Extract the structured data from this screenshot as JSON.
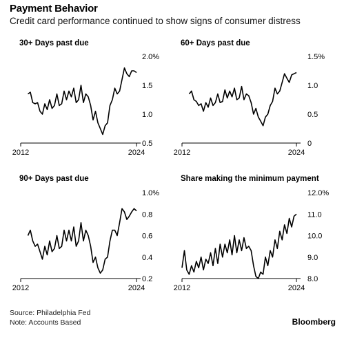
{
  "header": {
    "title": "Payment Behavior",
    "subtitle": "Credit card performance continued to show signs of consumer distress"
  },
  "footer": {
    "source": "Source: Philadelphia Fed",
    "note": "Note: Accounts Based",
    "brand": "Bloomberg"
  },
  "chart_data": [
    {
      "type": "line",
      "title": "30+ Days past due",
      "xlabel": "",
      "ylabel": "",
      "xlim": [
        2012,
        2024
      ],
      "ylim": [
        0.5,
        2.0
      ],
      "x_ticks": [
        "2012",
        "2024"
      ],
      "y_ticks": [
        0.5,
        1.0,
        1.5,
        2.0
      ],
      "y_tick_labels": [
        "0.5",
        "1.0",
        "1.5",
        "2.0%"
      ],
      "x": [
        2012.75,
        2013.0,
        2013.25,
        2013.5,
        2013.75,
        2014.0,
        2014.25,
        2014.5,
        2014.75,
        2015.0,
        2015.25,
        2015.5,
        2015.75,
        2016.0,
        2016.25,
        2016.5,
        2016.75,
        2017.0,
        2017.25,
        2017.5,
        2017.75,
        2018.0,
        2018.25,
        2018.5,
        2018.75,
        2019.0,
        2019.25,
        2019.5,
        2019.75,
        2020.0,
        2020.25,
        2020.5,
        2020.75,
        2021.0,
        2021.25,
        2021.5,
        2021.75,
        2022.0,
        2022.25,
        2022.5,
        2022.75,
        2023.0,
        2023.25,
        2023.5,
        2023.75,
        2024.0
      ],
      "values": [
        1.35,
        1.38,
        1.2,
        1.18,
        1.2,
        1.05,
        1.0,
        1.18,
        1.08,
        1.25,
        1.1,
        1.15,
        1.35,
        1.15,
        1.18,
        1.4,
        1.25,
        1.4,
        1.3,
        1.45,
        1.2,
        1.25,
        1.5,
        1.2,
        1.35,
        1.3,
        1.15,
        0.9,
        1.05,
        0.85,
        0.75,
        0.65,
        0.8,
        0.85,
        1.15,
        1.25,
        1.45,
        1.35,
        1.4,
        1.6,
        1.8,
        1.7,
        1.65,
        1.75,
        1.75,
        1.72
      ]
    },
    {
      "type": "line",
      "title": "60+ Days past due",
      "xlabel": "",
      "ylabel": "",
      "xlim": [
        2012,
        2024
      ],
      "ylim": [
        0,
        1.5
      ],
      "x_ticks": [
        "2012",
        "2024"
      ],
      "y_ticks": [
        0,
        0.5,
        1.0,
        1.5
      ],
      "y_tick_labels": [
        "0",
        "0.5",
        "1.0",
        "1.5%"
      ],
      "x": [
        2012.75,
        2013.0,
        2013.25,
        2013.5,
        2013.75,
        2014.0,
        2014.25,
        2014.5,
        2014.75,
        2015.0,
        2015.25,
        2015.5,
        2015.75,
        2016.0,
        2016.25,
        2016.5,
        2016.75,
        2017.0,
        2017.25,
        2017.5,
        2017.75,
        2018.0,
        2018.25,
        2018.5,
        2018.75,
        2019.0,
        2019.25,
        2019.5,
        2019.75,
        2020.0,
        2020.25,
        2020.5,
        2020.75,
        2021.0,
        2021.25,
        2021.5,
        2021.75,
        2022.0,
        2022.25,
        2022.5,
        2022.75,
        2023.0,
        2023.25,
        2023.5,
        2023.75,
        2024.0
      ],
      "values": [
        0.85,
        0.9,
        0.75,
        0.72,
        0.65,
        0.68,
        0.55,
        0.7,
        0.62,
        0.78,
        0.65,
        0.7,
        0.85,
        0.7,
        0.72,
        0.92,
        0.78,
        0.9,
        0.8,
        0.95,
        0.75,
        0.78,
        0.98,
        0.75,
        0.85,
        0.82,
        0.7,
        0.5,
        0.6,
        0.45,
        0.38,
        0.3,
        0.45,
        0.5,
        0.65,
        0.72,
        0.95,
        0.85,
        0.9,
        1.05,
        1.2,
        1.12,
        1.05,
        1.18,
        1.2,
        1.22
      ]
    },
    {
      "type": "line",
      "title": "90+ Days past due",
      "xlabel": "",
      "ylabel": "",
      "xlim": [
        2012,
        2024
      ],
      "ylim": [
        0.2,
        1.0
      ],
      "x_ticks": [
        "2012",
        "2024"
      ],
      "y_ticks": [
        0.2,
        0.4,
        0.6,
        0.8,
        1.0
      ],
      "y_tick_labels": [
        "0.2",
        "0.4",
        "0.6",
        "0.8",
        "1.0%"
      ],
      "x": [
        2012.75,
        2013.0,
        2013.25,
        2013.5,
        2013.75,
        2014.0,
        2014.25,
        2014.5,
        2014.75,
        2015.0,
        2015.25,
        2015.5,
        2015.75,
        2016.0,
        2016.25,
        2016.5,
        2016.75,
        2017.0,
        2017.25,
        2017.5,
        2017.75,
        2018.0,
        2018.25,
        2018.5,
        2018.75,
        2019.0,
        2019.25,
        2019.5,
        2019.75,
        2020.0,
        2020.25,
        2020.5,
        2020.75,
        2021.0,
        2021.25,
        2021.5,
        2021.75,
        2022.0,
        2022.25,
        2022.5,
        2022.75,
        2023.0,
        2023.25,
        2023.5,
        2023.75,
        2024.0
      ],
      "values": [
        0.6,
        0.65,
        0.55,
        0.5,
        0.52,
        0.45,
        0.38,
        0.5,
        0.42,
        0.55,
        0.45,
        0.48,
        0.6,
        0.48,
        0.5,
        0.65,
        0.55,
        0.65,
        0.55,
        0.68,
        0.5,
        0.55,
        0.72,
        0.55,
        0.65,
        0.6,
        0.5,
        0.35,
        0.4,
        0.3,
        0.25,
        0.28,
        0.38,
        0.4,
        0.55,
        0.65,
        0.65,
        0.6,
        0.72,
        0.85,
        0.82,
        0.75,
        0.78,
        0.82,
        0.85,
        0.83
      ]
    },
    {
      "type": "line",
      "title": "Share making the minimum payment",
      "xlabel": "",
      "ylabel": "",
      "xlim": [
        2012,
        2024
      ],
      "ylim": [
        8.0,
        12.0
      ],
      "x_ticks": [
        "2012",
        "2024"
      ],
      "y_ticks": [
        8.0,
        9.0,
        10.0,
        11.0,
        12.0
      ],
      "y_tick_labels": [
        "8.0",
        "9.0",
        "10.0",
        "11.0",
        "12.0%"
      ],
      "x": [
        2012.0,
        2012.25,
        2012.5,
        2012.75,
        2013.0,
        2013.25,
        2013.5,
        2013.75,
        2014.0,
        2014.25,
        2014.5,
        2014.75,
        2015.0,
        2015.25,
        2015.5,
        2015.75,
        2016.0,
        2016.25,
        2016.5,
        2016.75,
        2017.0,
        2017.25,
        2017.5,
        2017.75,
        2018.0,
        2018.25,
        2018.5,
        2018.75,
        2019.0,
        2019.25,
        2019.5,
        2019.75,
        2020.0,
        2020.25,
        2020.5,
        2020.75,
        2021.0,
        2021.25,
        2021.5,
        2021.75,
        2022.0,
        2022.25,
        2022.5,
        2022.75,
        2023.0,
        2023.25,
        2023.5,
        2023.75,
        2024.0
      ],
      "values": [
        8.5,
        9.3,
        8.4,
        8.2,
        8.6,
        8.3,
        8.8,
        8.5,
        9.0,
        8.4,
        8.9,
        8.7,
        9.2,
        8.6,
        9.4,
        8.7,
        9.6,
        9.0,
        9.6,
        9.2,
        9.8,
        9.1,
        10.0,
        9.2,
        9.8,
        9.3,
        9.9,
        9.4,
        9.5,
        9.3,
        8.6,
        8.1,
        8.0,
        8.3,
        8.2,
        9.0,
        8.6,
        9.3,
        9.0,
        9.8,
        9.4,
        10.2,
        9.8,
        10.5,
        10.1,
        10.8,
        10.4,
        10.9,
        11.0
      ]
    }
  ]
}
